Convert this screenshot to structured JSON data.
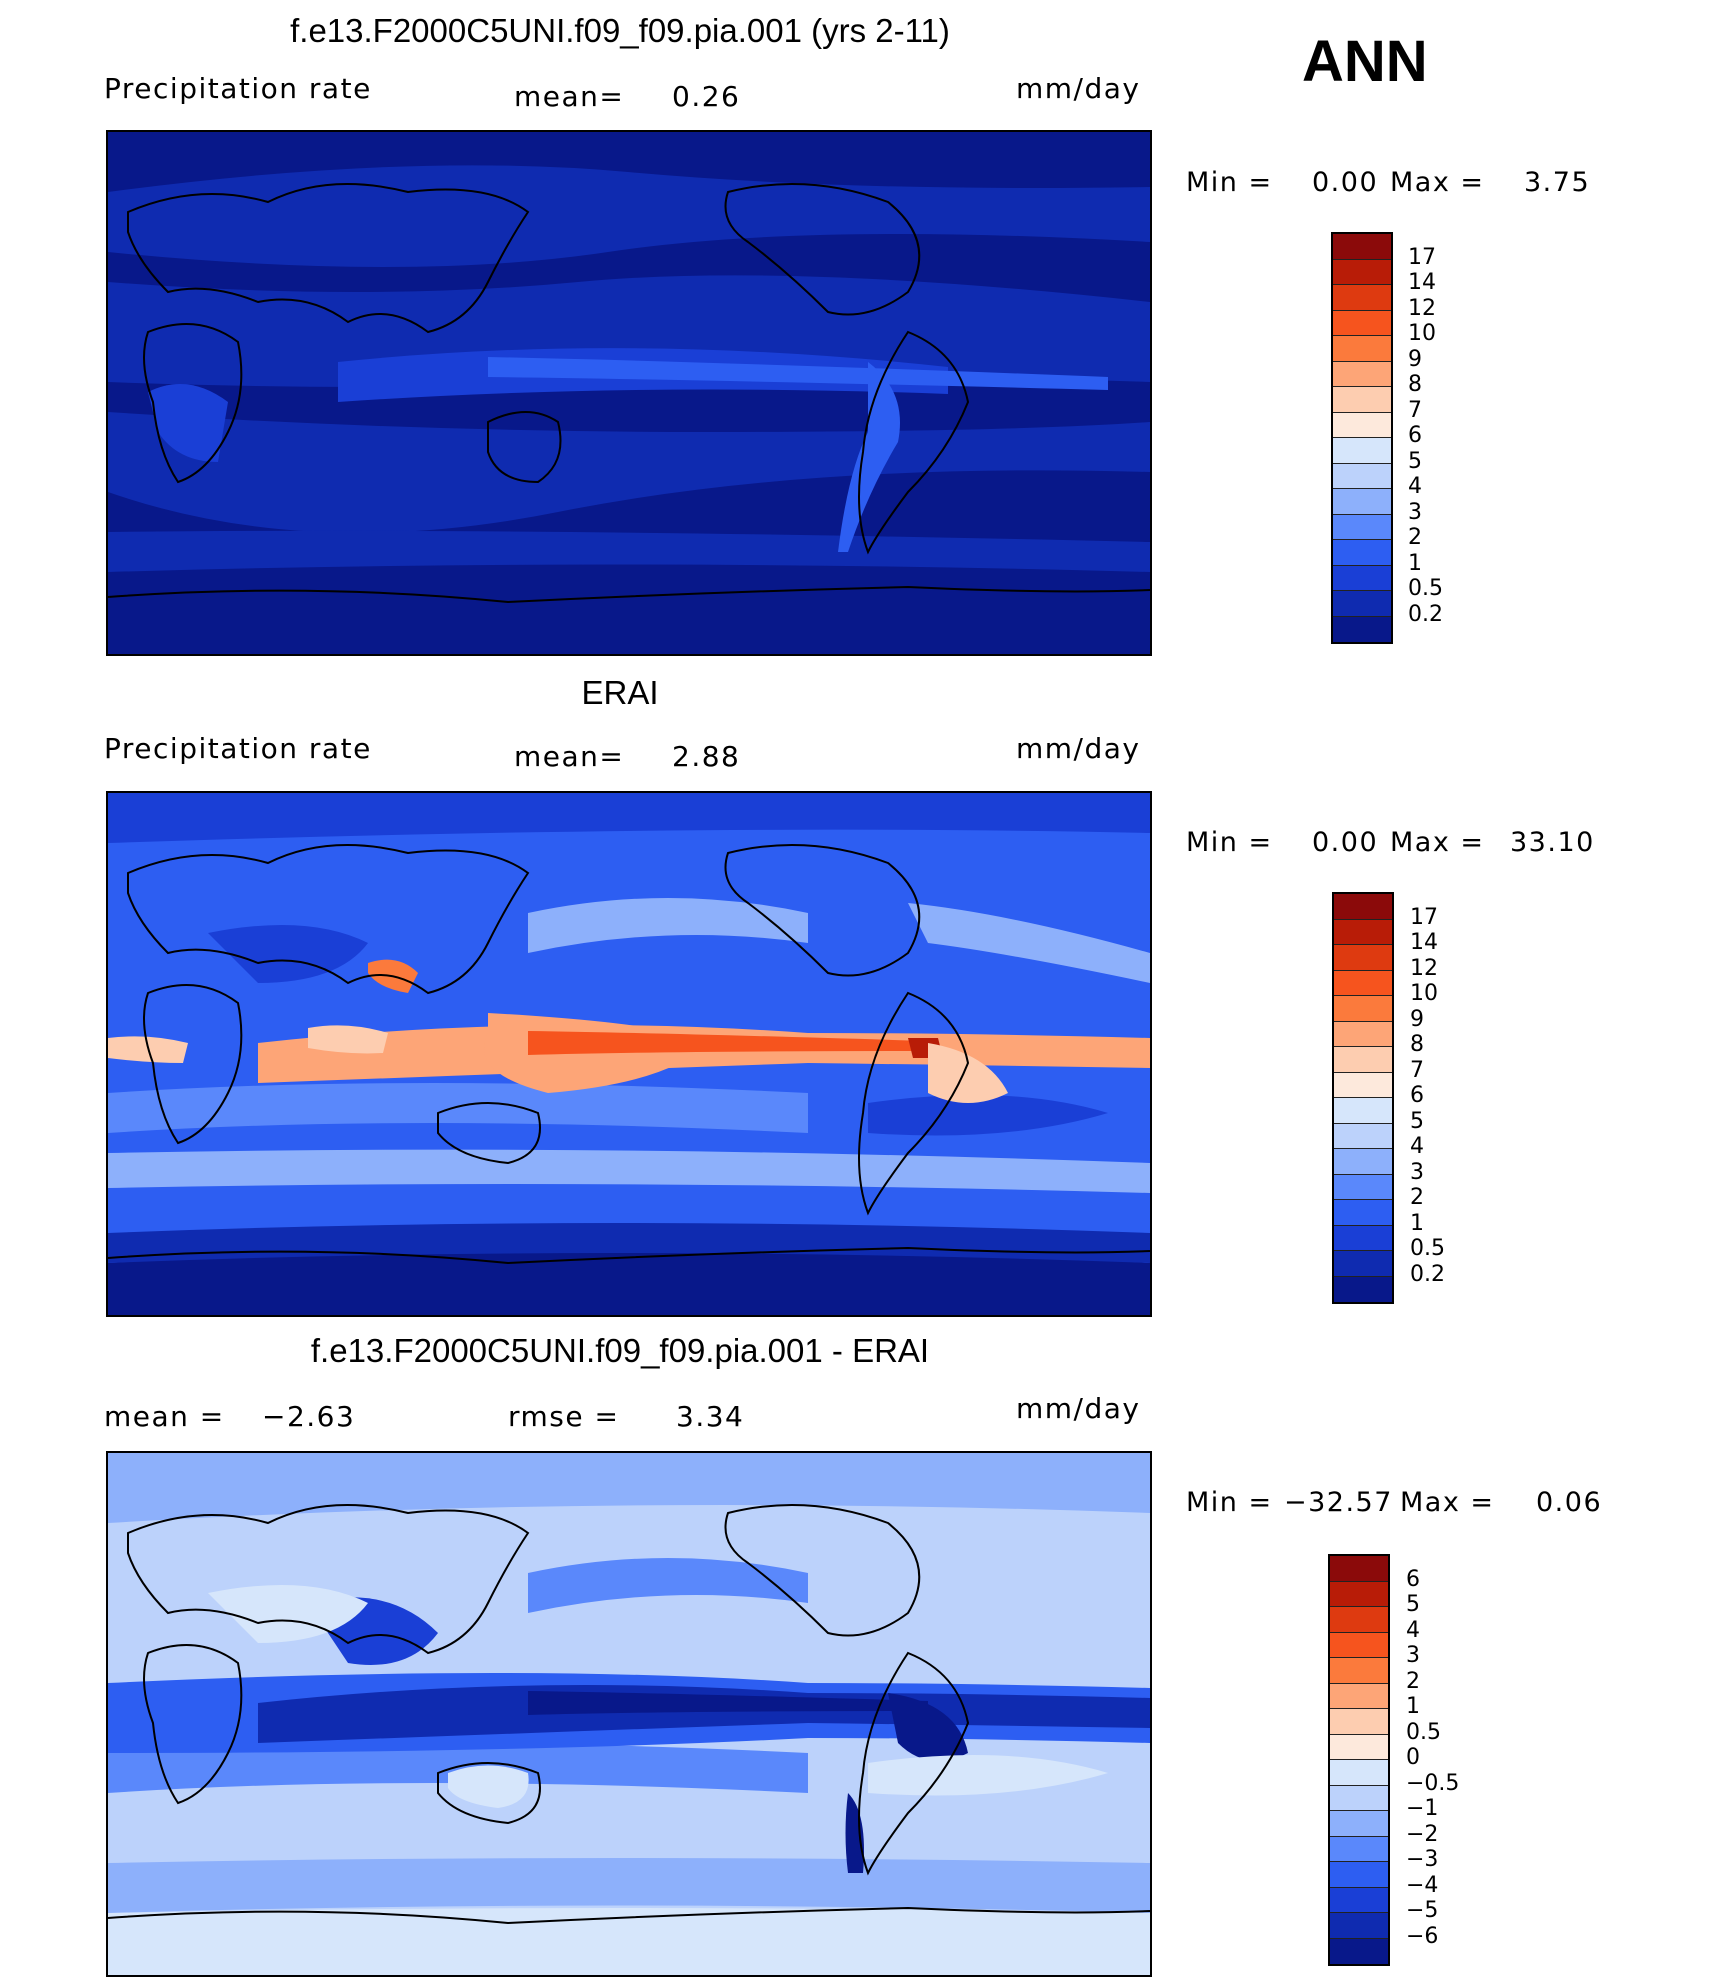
{
  "season": "ANN",
  "panels": [
    {
      "title": "f.e13.F2000C5UNI.f09_f09.pia.001 (yrs 2-11)",
      "left_label": "Precipitation  rate",
      "mid_label": "mean=",
      "mid_value": "0.26",
      "units": "mm/day",
      "min_label": "Min  =",
      "min_value": "0.00",
      "max_label": "Max  =",
      "max_value": "3.75",
      "colorbar": {
        "labels": [
          "17",
          "14",
          "12",
          "10",
          "9",
          "8",
          "7",
          "6",
          "5",
          "4",
          "3",
          "2",
          "1",
          "0.5",
          "0.2"
        ],
        "colors": [
          "#8b0a0a",
          "#b81c07",
          "#de3a10",
          "#f6541e",
          "#fb7a3c",
          "#fda577",
          "#fdcdb0",
          "#fde9dc",
          "#d6e6fb",
          "#bcd2fb",
          "#8db0fb",
          "#5a88fb",
          "#2d5ef2",
          "#1a3fd6",
          "#0f2bb0",
          "#08188a"
        ]
      },
      "map_description": "precip_model"
    },
    {
      "title": "ERAI",
      "left_label": "Precipitation  rate",
      "mid_label": "mean=",
      "mid_value": "2.88",
      "units": "mm/day",
      "min_label": "Min  =",
      "min_value": "0.00",
      "max_label": "Max  =",
      "max_value": "33.10",
      "colorbar": {
        "labels": [
          "17",
          "14",
          "12",
          "10",
          "9",
          "8",
          "7",
          "6",
          "5",
          "4",
          "3",
          "2",
          "1",
          "0.5",
          "0.2"
        ],
        "colors": [
          "#8b0a0a",
          "#b81c07",
          "#de3a10",
          "#f6541e",
          "#fb7a3c",
          "#fda577",
          "#fdcdb0",
          "#fde9dc",
          "#d6e6fb",
          "#bcd2fb",
          "#8db0fb",
          "#5a88fb",
          "#2d5ef2",
          "#1a3fd6",
          "#0f2bb0",
          "#08188a"
        ]
      },
      "map_description": "precip_obs"
    },
    {
      "title": "f.e13.F2000C5UNI.f09_f09.pia.001 - ERAI",
      "left_label": "mean  =",
      "left_value": "−2.63",
      "mid_label": "rmse  =",
      "mid_value": "3.34",
      "units": "mm/day",
      "min_label": "Min  =",
      "min_value": "−32.57",
      "max_label": "Max  =",
      "max_value": "0.06",
      "colorbar": {
        "labels": [
          "6",
          "5",
          "4",
          "3",
          "2",
          "1",
          "0.5",
          "0",
          "−0.5",
          "−1",
          "−2",
          "−3",
          "−4",
          "−5",
          "−6"
        ],
        "colors": [
          "#8b0a0a",
          "#b81c07",
          "#de3a10",
          "#f6541e",
          "#fb7a3c",
          "#fda577",
          "#fdcdb0",
          "#fde9dc",
          "#d6e6fb",
          "#bcd2fb",
          "#8db0fb",
          "#5a88fb",
          "#2d5ef2",
          "#1a3fd6",
          "#0f2bb0",
          "#08188a"
        ]
      },
      "map_description": "difference"
    }
  ]
}
